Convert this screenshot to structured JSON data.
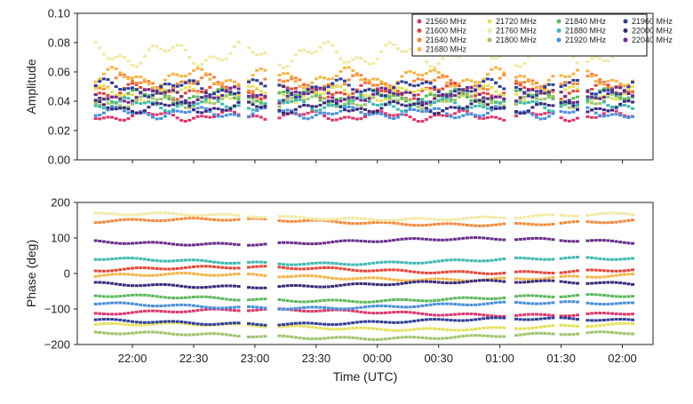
{
  "chart_data": [
    {
      "type": "scatter",
      "title": "",
      "xlabel": "",
      "ylabel": "Amplitude",
      "ylim": [
        0,
        0.1
      ],
      "yticks": [
        "0.00",
        "0.02",
        "0.04",
        "0.06",
        "0.08",
        "0.10"
      ],
      "legend_position": "top-right"
    },
    {
      "type": "scatter",
      "title": "",
      "xlabel": "Time (UTC)",
      "ylabel": "Phase (deg)",
      "ylim": [
        -200,
        200
      ],
      "yticks": [
        "−200",
        "−100",
        "0",
        "100",
        "200"
      ]
    }
  ],
  "x_axis": {
    "unit": "minutes relative to 22:00 UTC",
    "xlim": [
      -27,
      255
    ],
    "ticks": [
      {
        "v": 0,
        "label": "22:00"
      },
      {
        "v": 30,
        "label": "22:30"
      },
      {
        "v": 60,
        "label": "23:00"
      },
      {
        "v": 90,
        "label": "23:30"
      },
      {
        "v": 120,
        "label": "00:00"
      },
      {
        "v": 150,
        "label": "00:30"
      },
      {
        "v": 180,
        "label": "01:00"
      },
      {
        "v": 210,
        "label": "01:30"
      },
      {
        "v": 240,
        "label": "02:00"
      }
    ],
    "data_segments": [
      [
        -18,
        53
      ],
      [
        57,
        66
      ],
      [
        72,
        183
      ],
      [
        188,
        206
      ],
      [
        210,
        219
      ],
      [
        223,
        246
      ]
    ]
  },
  "series": [
    {
      "name": "21560 MHz",
      "color": "#d9376e",
      "amp": 0.03,
      "phase": -110
    },
    {
      "name": "21600 MHz",
      "color": "#e2483a",
      "amp": 0.047,
      "phase": 10
    },
    {
      "name": "21640 MHz",
      "color": "#f08a3c",
      "amp": 0.052,
      "phase": 145
    },
    {
      "name": "21680 MHz",
      "color": "#f3b447",
      "amp": 0.056,
      "phase": -10
    },
    {
      "name": "21720 MHz",
      "color": "#e6e05a",
      "amp": 0.045,
      "phase": -150
    },
    {
      "name": "21760 MHz",
      "color": "#f1e9a2",
      "amp": 0.072,
      "phase": 160
    },
    {
      "name": "21800 MHz",
      "color": "#9cc46a",
      "amp": 0.04,
      "phase": -175
    },
    {
      "name": "21840 MHz",
      "color": "#5cb85c",
      "amp": 0.043,
      "phase": -70
    },
    {
      "name": "21880 MHz",
      "color": "#3fb8b0",
      "amp": 0.038,
      "phase": 35
    },
    {
      "name": "21920 MHz",
      "color": "#4a8fd8",
      "amp": 0.032,
      "phase": -90
    },
    {
      "name": "21960 MHz",
      "color": "#2f3f96",
      "amp": 0.049,
      "phase": -135
    },
    {
      "name": "22000 MHz",
      "color": "#3a2a7a",
      "amp": 0.036,
      "phase": -30
    },
    {
      "name": "22040 MHz",
      "color": "#6a2d8a",
      "amp": 0.044,
      "phase": 90
    }
  ]
}
